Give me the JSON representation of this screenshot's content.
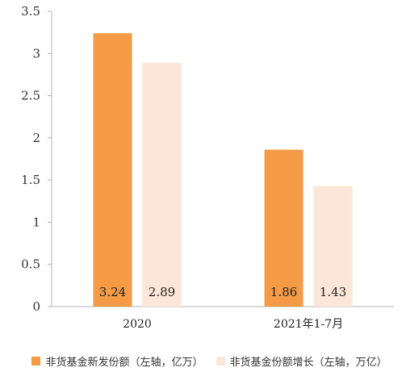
{
  "chart_data": {
    "type": "bar",
    "categories": [
      "2020",
      "2021年1-7月"
    ],
    "series": [
      {
        "name": "非货基金新发份额（左轴，亿万）",
        "values": [
          3.24,
          1.86
        ],
        "color": "#F59A45"
      },
      {
        "name": "非货基金份额增长（左轴，万亿）",
        "values": [
          2.89,
          1.43
        ],
        "color": "#FCE6D7"
      }
    ],
    "ylim": [
      0,
      3.5
    ],
    "yticks": [
      "0",
      "0.5",
      "1",
      "1.5",
      "2",
      "2.5",
      "3",
      "3.5"
    ],
    "data_labels": [
      [
        "3.24",
        "1.86"
      ],
      [
        "2.89",
        "1.43"
      ]
    ],
    "grid": false,
    "legend_position": "bottom"
  }
}
